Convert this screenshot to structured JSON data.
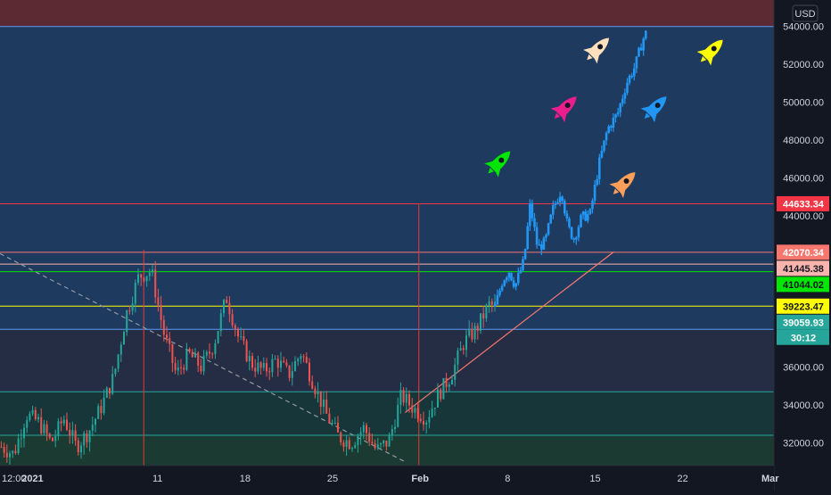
{
  "chart_data": {
    "type": "candlestick",
    "currency": "USD",
    "y_ticks": [
      "54000.00",
      "52000.00",
      "50000.00",
      "48000.00",
      "46000.00",
      "44000.00",
      "36000.00",
      "34000.00",
      "32000.00"
    ],
    "y_tick_values": [
      54000,
      52000,
      50000,
      48000,
      46000,
      44000,
      36000,
      34000,
      32000
    ],
    "ylim": [
      30800,
      55400
    ],
    "x_ticks": [
      "12:00",
      "2021",
      "11",
      "18",
      "25",
      "Feb",
      "8",
      "15",
      "22",
      "Mar"
    ],
    "x_tick_days": [
      -2.5,
      0,
      10,
      17,
      24,
      31,
      38,
      45,
      52,
      59
    ],
    "xlim": [
      -2.6,
      59.3
    ],
    "price_labels": [
      {
        "text": "44633.34",
        "value": 44633.34,
        "bg": "#f23645",
        "fg": "#ffffff",
        "line": "#f23645"
      },
      {
        "text": "42070.34",
        "value": 42070.34,
        "bg": "#f7776f",
        "fg": "#ffffff",
        "line": "#f7776f"
      },
      {
        "text": "41445.38",
        "value": 41445.38,
        "bg": "#f9b4ad",
        "fg": "#131722",
        "line": "#f9b4ad"
      },
      {
        "text": "41044.02",
        "value": 41044.02,
        "bg": "#00e600",
        "fg": "#131722",
        "line": "#00e600"
      },
      {
        "text": "39223.47",
        "value": 39223.47,
        "bg": "#ffff00",
        "fg": "#131722",
        "line": "#ffff00"
      },
      {
        "text": "39059.93",
        "value": 39059.93,
        "bg": "#26a69a",
        "fg": "#ffffff",
        "line": null
      }
    ],
    "countdown": {
      "text": "30:12",
      "bg": "#26a69a",
      "fg": "#ffffff"
    },
    "horizontal_lines": [
      {
        "value": 54000,
        "color": "#5b9cf6"
      },
      {
        "value": 38000,
        "color": "#5b9cf6"
      },
      {
        "value": 34700,
        "color": "#26a69a"
      },
      {
        "value": 32400,
        "color": "#26a69a"
      }
    ],
    "zones": [
      {
        "from": 54000,
        "to": 55400,
        "color": "#5c2a32"
      },
      {
        "from": 38000,
        "to": 54000,
        "color": "#1f3a5f"
      },
      {
        "from": 34700,
        "to": 38000,
        "color": "#252d44"
      },
      {
        "from": 32400,
        "to": 34700,
        "color": "#17363a"
      },
      {
        "from": 30800,
        "to": 32400,
        "color": "#1a3a32"
      }
    ],
    "vertical_lines": [
      {
        "day": 8.9,
        "from": 30800,
        "to": 42200,
        "color": "#e53935"
      },
      {
        "day": 30.9,
        "from": 30800,
        "to": 44633.34,
        "color": "#e53935"
      }
    ],
    "trendlines": [
      {
        "x1": -2.6,
        "y1": 42000,
        "x2": 29.8,
        "y2": 31000,
        "color": "#9598a1",
        "dash": true
      },
      {
        "x1": 29.8,
        "y1": 33600,
        "x2": 46.5,
        "y2": 42100,
        "color": "#f7776f",
        "dash": false
      }
    ],
    "rockets": [
      {
        "day": 45.2,
        "value": 52800,
        "color": "#ffe0bd"
      },
      {
        "day": 54.3,
        "value": 52700,
        "color": "#ffff00"
      },
      {
        "day": 42.6,
        "value": 49700,
        "color": "#e91e8c"
      },
      {
        "day": 49.8,
        "value": 49700,
        "color": "#2196f3"
      },
      {
        "day": 37.3,
        "value": 46800,
        "color": "#00e600"
      },
      {
        "day": 47.3,
        "value": 45700,
        "color": "#ff9f5a"
      }
    ],
    "candles": {
      "up_color": "#26a69a",
      "down_color": "#ef5350",
      "projection_color": "#2196f3",
      "segments": [
        {
          "day": -2.5,
          "price": 31800
        },
        {
          "day": -1.5,
          "price": 31400
        },
        {
          "day": -0.5,
          "price": 33500
        },
        {
          "day": 0.5,
          "price": 33100
        },
        {
          "day": 1.5,
          "price": 32000
        },
        {
          "day": 2.5,
          "price": 33300
        },
        {
          "day": 3.5,
          "price": 31800
        },
        {
          "day": 4.5,
          "price": 32600
        },
        {
          "day": 5.5,
          "price": 33900
        },
        {
          "day": 6.5,
          "price": 35500
        },
        {
          "day": 7.5,
          "price": 38800
        },
        {
          "day": 8.5,
          "price": 40800
        },
        {
          "day": 9.5,
          "price": 41100
        },
        {
          "day": 10.5,
          "price": 37800
        },
        {
          "day": 11.5,
          "price": 35600
        },
        {
          "day": 12.5,
          "price": 36700
        },
        {
          "day": 13.5,
          "price": 36000
        },
        {
          "day": 14.5,
          "price": 37200
        },
        {
          "day": 15.5,
          "price": 39700
        },
        {
          "day": 16.5,
          "price": 37500
        },
        {
          "day": 17.5,
          "price": 36200
        },
        {
          "day": 18.5,
          "price": 35800
        },
        {
          "day": 19.5,
          "price": 36400
        },
        {
          "day": 20.5,
          "price": 35600
        },
        {
          "day": 21.5,
          "price": 36800
        },
        {
          "day": 22.5,
          "price": 35100
        },
        {
          "day": 23.5,
          "price": 33500
        },
        {
          "day": 24.5,
          "price": 32300
        },
        {
          "day": 25.5,
          "price": 32000
        },
        {
          "day": 26.5,
          "price": 32800
        },
        {
          "day": 27.5,
          "price": 31600
        },
        {
          "day": 28.5,
          "price": 32100
        },
        {
          "day": 29.5,
          "price": 34500
        },
        {
          "day": 30.5,
          "price": 33800
        },
        {
          "day": 31.5,
          "price": 33300
        },
        {
          "day": 32.5,
          "price": 34600
        },
        {
          "day": 33.5,
          "price": 35600
        },
        {
          "day": 34.5,
          "price": 37300
        },
        {
          "day": 35.5,
          "price": 38000
        },
        {
          "day": 36.5,
          "price": 39300
        },
        {
          "day": 37.0,
          "price": 39200
        }
      ],
      "projection": [
        {
          "day": 37.0,
          "price": 39200
        },
        {
          "day": 37.6,
          "price": 40600
        },
        {
          "day": 38.1,
          "price": 41100
        },
        {
          "day": 38.6,
          "price": 40300
        },
        {
          "day": 39.3,
          "price": 41600
        },
        {
          "day": 39.8,
          "price": 44600
        },
        {
          "day": 40.4,
          "price": 42300
        },
        {
          "day": 41.0,
          "price": 42600
        },
        {
          "day": 41.6,
          "price": 44300
        },
        {
          "day": 42.3,
          "price": 45400
        },
        {
          "day": 42.8,
          "price": 43400
        },
        {
          "day": 43.3,
          "price": 42800
        },
        {
          "day": 43.9,
          "price": 43900
        },
        {
          "day": 44.6,
          "price": 44100
        },
        {
          "day": 45.3,
          "price": 46700
        },
        {
          "day": 46.0,
          "price": 48600
        },
        {
          "day": 46.8,
          "price": 49400
        },
        {
          "day": 47.5,
          "price": 51000
        },
        {
          "day": 48.2,
          "price": 51900
        },
        {
          "day": 48.8,
          "price": 53300
        },
        {
          "day": 49.2,
          "price": 53800
        }
      ]
    }
  }
}
